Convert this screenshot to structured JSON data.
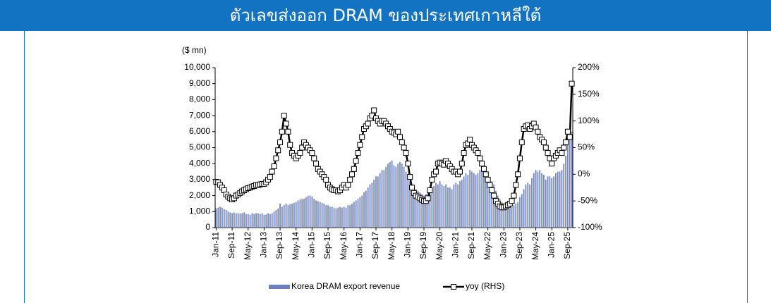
{
  "header": {
    "title": "ตัวเลขส่งออก DRAM ของประเทศเกาหลีใต้"
  },
  "chart_data": {
    "type": "bar-line",
    "y_label": "($ mn)",
    "categories": [
      "Jan-11",
      null,
      null,
      null,
      null,
      null,
      null,
      null,
      "Sep-11",
      null,
      null,
      null,
      null,
      null,
      null,
      null,
      "May-12",
      null,
      null,
      null,
      null,
      null,
      null,
      null,
      "Jan-13",
      null,
      null,
      null,
      null,
      null,
      null,
      null,
      "Sep-13",
      null,
      null,
      null,
      null,
      null,
      null,
      null,
      "May-14",
      null,
      null,
      null,
      null,
      null,
      null,
      null,
      "Jan-15",
      null,
      null,
      null,
      null,
      null,
      null,
      null,
      "Sep-15",
      null,
      null,
      null,
      null,
      null,
      null,
      null,
      "May-16",
      null,
      null,
      null,
      null,
      null,
      null,
      null,
      "Jan-17",
      null,
      null,
      null,
      null,
      null,
      null,
      null,
      "Sep-17",
      null,
      null,
      null,
      null,
      null,
      null,
      null,
      "May-18",
      null,
      null,
      null,
      null,
      null,
      null,
      null,
      "Jan-19",
      null,
      null,
      null,
      null,
      null,
      null,
      null,
      "Sep-19",
      null,
      null,
      null,
      null,
      null,
      null,
      null,
      "May-20",
      null,
      null,
      null,
      null,
      null,
      null,
      null,
      "Jan-21",
      null,
      null,
      null,
      null,
      null,
      null,
      null,
      "Sep-21",
      null,
      null,
      null,
      null,
      null,
      null,
      null,
      "May-22",
      null,
      null,
      null,
      null,
      null,
      null,
      null,
      "Jan-23",
      null,
      null,
      null,
      null,
      null,
      null,
      null,
      "Sep-23",
      null,
      null,
      null,
      null,
      null,
      null,
      null,
      "May-24",
      null,
      null,
      null,
      null,
      null,
      null,
      null,
      "Jan-25",
      null,
      null,
      null,
      null,
      null,
      null,
      null,
      "Sep-25",
      null,
      null
    ],
    "series": [
      {
        "name": "Korea DRAM export revenue",
        "type": "bar",
        "axis": "y",
        "color": "#6c7fbf",
        "values": [
          1200,
          1250,
          1300,
          1250,
          1150,
          1100,
          1000,
          950,
          900,
          950,
          900,
          900,
          880,
          900,
          950,
          850,
          850,
          800,
          900,
          850,
          900,
          900,
          850,
          900,
          800,
          820,
          900,
          850,
          900,
          1000,
          1100,
          1200,
          1500,
          1300,
          1400,
          1500,
          1400,
          1450,
          1500,
          1550,
          1600,
          1700,
          1750,
          1800,
          1800,
          1900,
          2000,
          2000,
          1950,
          1800,
          1700,
          1650,
          1600,
          1550,
          1500,
          1400,
          1400,
          1300,
          1300,
          1250,
          1200,
          1250,
          1300,
          1250,
          1300,
          1250,
          1400,
          1400,
          1500,
          1600,
          1700,
          1800,
          1900,
          2000,
          2200,
          2300,
          2500,
          2700,
          2800,
          3000,
          3200,
          3200,
          3400,
          3600,
          3600,
          3800,
          4000,
          4100,
          4200,
          3900,
          3800,
          4000,
          4100,
          4000,
          3800,
          3500,
          3200,
          2900,
          2700,
          2500,
          2400,
          2300,
          2200,
          2100,
          2000,
          2100,
          2200,
          2400,
          2500,
          2600,
          2800,
          2700,
          2900,
          2700,
          2600,
          2700,
          2500,
          2500,
          2400,
          2700,
          2800,
          2700,
          2900,
          3000,
          3200,
          3400,
          3300,
          3600,
          3500,
          3400,
          3300,
          3400,
          3600,
          3500,
          3700,
          3300,
          3400,
          3100,
          2900,
          2700,
          2300,
          2000,
          1800,
          1600,
          1300,
          1200,
          1300,
          1200,
          1300,
          1400,
          1500,
          1600,
          1900,
          2100,
          2400,
          2700,
          2800,
          2700,
          3100,
          3400,
          3600,
          3500,
          3600,
          3400,
          3300,
          3000,
          3200,
          3200,
          3100,
          3200,
          3400,
          3500,
          3500,
          3600,
          4000,
          4500,
          5500,
          5800,
          6000
        ]
      },
      {
        "name": "yoy (RHS)",
        "type": "line",
        "axis": "y2",
        "color": "#000000",
        "values": [
          -14,
          -15,
          -20,
          -25,
          -30,
          -38,
          -42,
          -45,
          -47,
          -45,
          -40,
          -38,
          -35,
          -32,
          -30,
          -28,
          -26,
          -25,
          -23,
          -22,
          -20,
          -20,
          -19,
          -18,
          -18,
          -15,
          -10,
          -5,
          5,
          15,
          30,
          45,
          60,
          80,
          110,
          95,
          80,
          55,
          40,
          35,
          30,
          35,
          40,
          50,
          60,
          55,
          50,
          45,
          40,
          30,
          20,
          10,
          5,
          0,
          -5,
          -10,
          -20,
          -25,
          -28,
          -30,
          -30,
          -32,
          -30,
          -25,
          -20,
          -25,
          -20,
          -10,
          0,
          10,
          25,
          40,
          55,
          70,
          85,
          90,
          95,
          105,
          110,
          120,
          105,
          100,
          95,
          100,
          100,
          95,
          90,
          85,
          80,
          78,
          75,
          80,
          70,
          60,
          50,
          40,
          20,
          -5,
          -25,
          -35,
          -40,
          -42,
          -45,
          -48,
          -50,
          -50,
          -45,
          -30,
          -10,
          0,
          5,
          20,
          22,
          20,
          18,
          25,
          20,
          15,
          10,
          5,
          5,
          0,
          5,
          20,
          40,
          55,
          58,
          65,
          55,
          50,
          45,
          40,
          30,
          20,
          10,
          0,
          -10,
          -20,
          -30,
          -40,
          -50,
          -55,
          -60,
          -62,
          -62,
          -60,
          -58,
          -55,
          -50,
          -40,
          -20,
          0,
          30,
          60,
          85,
          90,
          92,
          85,
          90,
          95,
          88,
          80,
          70,
          65,
          60,
          50,
          40,
          30,
          20,
          30,
          35,
          40,
          45,
          40,
          50,
          60,
          80,
          70,
          170
        ]
      }
    ],
    "ylim": [
      0,
      10000
    ],
    "yticks": [
      0,
      {
        "value": 1000,
        "label": "1,000"
      },
      {
        "value": 2000,
        "label": "2,000"
      },
      {
        "value": 3000,
        "label": "3,000"
      },
      {
        "value": 4000,
        "label": "4,000"
      },
      {
        "value": 5000,
        "label": "5,000"
      },
      {
        "value": 6000,
        "label": "6,000"
      },
      {
        "value": 7000,
        "label": "7,000"
      },
      {
        "value": 8000,
        "label": "8,000"
      },
      {
        "value": 9000,
        "label": "9,000"
      },
      {
        "value": 10000,
        "label": "10,000"
      }
    ],
    "y2lim": [
      -100,
      200
    ],
    "y2ticks": [
      {
        "value": -100,
        "label": "-100%"
      },
      {
        "value": -50,
        "label": "-50%"
      },
      {
        "value": 0,
        "label": "0%"
      },
      {
        "value": 50,
        "label": "50%"
      },
      {
        "value": 100,
        "label": "100%"
      },
      {
        "value": 150,
        "label": "150%"
      },
      {
        "value": 200,
        "label": "200%"
      }
    ],
    "grid": false,
    "legend": "bottom"
  }
}
